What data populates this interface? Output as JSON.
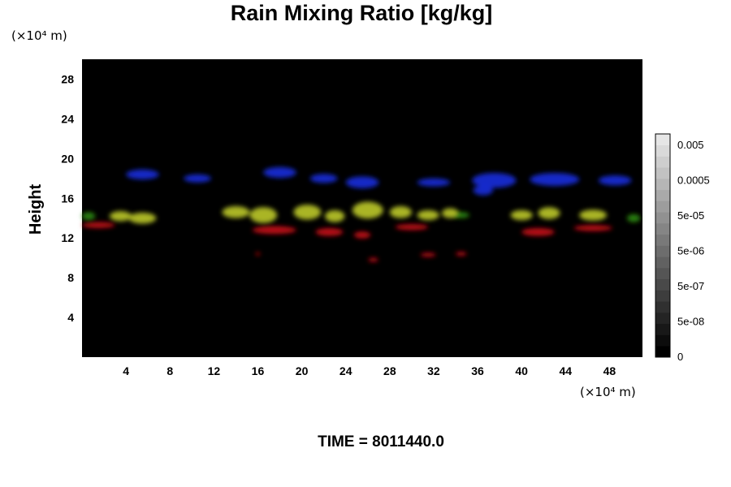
{
  "chart_data": {
    "type": "heatmap",
    "title": "Rain Mixing Ratio [kg/kg]",
    "ylabel": "Height",
    "x_unit": "(×10⁴ m)",
    "y_unit": "(×10⁴ m)",
    "xlim": [
      0,
      51
    ],
    "ylim": [
      0,
      30
    ],
    "x_ticks": [
      4,
      8,
      12,
      16,
      20,
      24,
      28,
      32,
      36,
      40,
      44,
      48
    ],
    "y_ticks": [
      4,
      8,
      12,
      16,
      20,
      24,
      28
    ],
    "background": "#000000",
    "colorbar": {
      "levels": 20,
      "labels": [
        "0.005",
        "0.0005",
        "5e-05",
        "5e-06",
        "5e-07",
        "5e-08",
        "0"
      ],
      "label_values": [
        0.005,
        0.0005,
        5e-05,
        5e-06,
        5e-07,
        5e-08,
        0
      ]
    },
    "features": [
      {
        "band": "blue",
        "color": "#1a2ad8",
        "patches": [
          {
            "x": 5.5,
            "y": 18.4,
            "w": 3.0,
            "h": 1.0
          },
          {
            "x": 10.5,
            "y": 18.0,
            "w": 2.5,
            "h": 0.8
          },
          {
            "x": 18.0,
            "y": 18.6,
            "w": 3.0,
            "h": 1.1
          },
          {
            "x": 22.0,
            "y": 18.0,
            "w": 2.5,
            "h": 0.9
          },
          {
            "x": 25.5,
            "y": 17.6,
            "w": 3.0,
            "h": 1.2
          },
          {
            "x": 32.0,
            "y": 17.6,
            "w": 3.0,
            "h": 0.8
          },
          {
            "x": 37.5,
            "y": 17.8,
            "w": 4.0,
            "h": 1.5
          },
          {
            "x": 36.5,
            "y": 16.8,
            "w": 1.8,
            "h": 1.0
          },
          {
            "x": 43.0,
            "y": 17.9,
            "w": 4.5,
            "h": 1.3
          },
          {
            "x": 48.5,
            "y": 17.8,
            "w": 3.0,
            "h": 1.0
          }
        ]
      },
      {
        "band": "red",
        "color": "#c8101a",
        "patches": [
          {
            "x": 1.5,
            "y": 13.3,
            "w": 3.0,
            "h": 0.6
          },
          {
            "x": 17.5,
            "y": 12.8,
            "w": 4.0,
            "h": 0.8
          },
          {
            "x": 22.5,
            "y": 12.6,
            "w": 2.5,
            "h": 0.8
          },
          {
            "x": 25.5,
            "y": 12.3,
            "w": 1.5,
            "h": 0.7
          },
          {
            "x": 30.0,
            "y": 13.1,
            "w": 3.0,
            "h": 0.6
          },
          {
            "x": 41.5,
            "y": 12.6,
            "w": 3.0,
            "h": 0.8
          },
          {
            "x": 46.5,
            "y": 13.0,
            "w": 3.5,
            "h": 0.6
          },
          {
            "x": 26.5,
            "y": 9.8,
            "w": 0.9,
            "h": 0.4
          },
          {
            "x": 31.5,
            "y": 10.3,
            "w": 1.4,
            "h": 0.4
          },
          {
            "x": 34.5,
            "y": 10.4,
            "w": 1.0,
            "h": 0.4
          },
          {
            "x": 16.0,
            "y": 10.4,
            "w": 0.4,
            "h": 0.3
          }
        ]
      },
      {
        "band": "green",
        "color": "#2a8a12",
        "patches": [
          {
            "x": 0.6,
            "y": 14.2,
            "w": 1.2,
            "h": 0.8
          },
          {
            "x": 50.2,
            "y": 14.0,
            "w": 1.2,
            "h": 0.8
          },
          {
            "x": 34.5,
            "y": 14.3,
            "w": 1.5,
            "h": 0.6
          }
        ]
      },
      {
        "band": "yellow",
        "color": "#b8c428",
        "patches": [
          {
            "x": 3.5,
            "y": 14.2,
            "w": 2.0,
            "h": 1.0
          },
          {
            "x": 5.5,
            "y": 14.0,
            "w": 2.5,
            "h": 1.1
          },
          {
            "x": 14.0,
            "y": 14.6,
            "w": 2.5,
            "h": 1.2
          },
          {
            "x": 16.5,
            "y": 14.3,
            "w": 2.5,
            "h": 1.6
          },
          {
            "x": 20.5,
            "y": 14.6,
            "w": 2.5,
            "h": 1.5
          },
          {
            "x": 23.0,
            "y": 14.2,
            "w": 1.8,
            "h": 1.2
          },
          {
            "x": 26.0,
            "y": 14.8,
            "w": 2.8,
            "h": 1.7
          },
          {
            "x": 29.0,
            "y": 14.6,
            "w": 2.0,
            "h": 1.2
          },
          {
            "x": 31.5,
            "y": 14.3,
            "w": 2.0,
            "h": 1.0
          },
          {
            "x": 33.5,
            "y": 14.5,
            "w": 1.5,
            "h": 1.0
          },
          {
            "x": 40.0,
            "y": 14.3,
            "w": 2.0,
            "h": 1.0
          },
          {
            "x": 42.5,
            "y": 14.5,
            "w": 2.0,
            "h": 1.2
          },
          {
            "x": 46.5,
            "y": 14.3,
            "w": 2.5,
            "h": 1.1
          }
        ]
      }
    ]
  },
  "footer": {
    "time_text": "TIME = 8011440.0"
  }
}
